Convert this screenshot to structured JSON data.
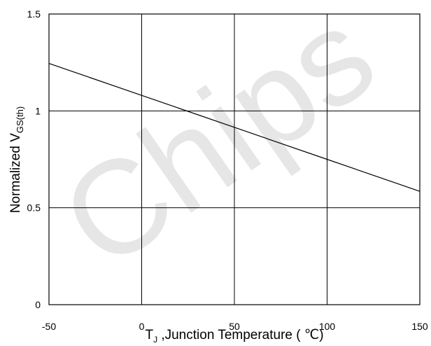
{
  "chart_data": {
    "type": "line",
    "xlabel_main": "T",
    "xlabel_sub": "J",
    "xlabel_rest": " ,Junction Temperature ( ℃)",
    "ylabel_main": "Normalized  V",
    "ylabel_sub": "GS(th)",
    "xlim": [
      -50,
      150
    ],
    "ylim": [
      0,
      1.5
    ],
    "x_ticks": [
      -50,
      0,
      50,
      100,
      150
    ],
    "y_ticks": [
      0,
      0.5,
      1,
      1.5
    ],
    "x_tick_labels": [
      "-50",
      "0",
      "50",
      "100",
      "150"
    ],
    "y_tick_labels": [
      "0",
      "0.5",
      "1",
      "1.5"
    ],
    "grid": true,
    "series": [
      {
        "x": [
          -50,
          0,
          50,
          100,
          150
        ],
        "y": [
          1.245,
          1.08,
          0.915,
          0.75,
          0.585
        ]
      }
    ],
    "watermark": "Chips",
    "colors": {
      "line": "#000000",
      "grid": "#000000",
      "watermark": "#e6e6e6"
    }
  }
}
